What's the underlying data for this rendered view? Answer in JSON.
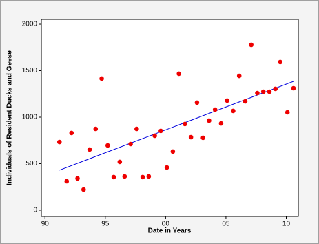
{
  "chart_data": {
    "type": "scatter",
    "xlabel": "Date in Years",
    "ylabel": "Individuals of Resident Ducks and Geese",
    "x": [
      1991.2,
      1991.8,
      1992.2,
      1992.7,
      1993.2,
      1993.7,
      1994.2,
      1994.7,
      1995.2,
      1995.7,
      1996.2,
      1996.6,
      1997.1,
      1997.6,
      1998.1,
      1998.6,
      1999.1,
      1999.6,
      2000.1,
      2000.6,
      2001.1,
      2001.6,
      2002.1,
      2002.6,
      2003.1,
      2003.6,
      2004.1,
      2004.6,
      2005.1,
      2005.6,
      2006.1,
      2006.6,
      2007.1,
      2007.6,
      2008.1,
      2008.6,
      2009.1,
      2009.5,
      2010.1,
      2010.6
    ],
    "values": [
      733,
      311,
      830,
      341,
      222,
      652,
      874,
      1415,
      696,
      356,
      519,
      363,
      711,
      874,
      356,
      363,
      800,
      852,
      459,
      630,
      1467,
      926,
      785,
      1156,
      778,
      963,
      1081,
      933,
      1178,
      1067,
      1444,
      1170,
      1778,
      1259,
      1274,
      1274,
      1304,
      1593,
      1052,
      1311
    ],
    "color": "#ee0000",
    "trend_line": {
      "x": [
        1991.2,
        2010.6
      ],
      "values": [
        430,
        1385
      ],
      "color": "#0000dd"
    },
    "xlim": [
      1989.7,
      2011
    ],
    "xticks": [
      {
        "value": 1990,
        "label": "90"
      },
      {
        "value": 1995,
        "label": "95"
      },
      {
        "value": 2000,
        "label": "00"
      },
      {
        "value": 2005,
        "label": "05"
      },
      {
        "value": 2010,
        "label": "10"
      }
    ],
    "ylim": [
      -67,
      2052
    ],
    "yticks": [
      0,
      500,
      1000,
      1500,
      2000
    ]
  }
}
